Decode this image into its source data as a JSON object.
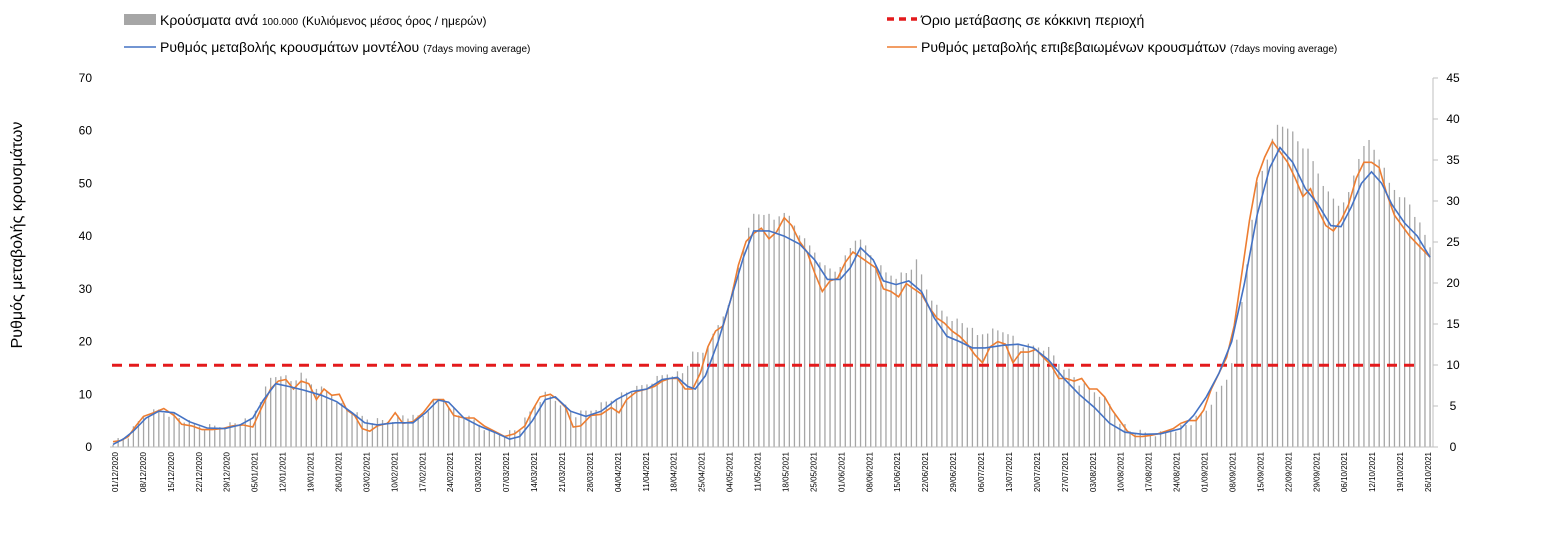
{
  "chart_data": {
    "type": "bar+line",
    "title": "",
    "ylabel": "Ρυθμός μεταβολής κρουσμάτων",
    "ylim_left": [
      0,
      70
    ],
    "ylim_right": [
      0,
      45
    ],
    "yticks_left": [
      "0",
      "10",
      "20",
      "30",
      "40",
      "50",
      "60",
      "70"
    ],
    "yticks_right": [
      "0",
      "5",
      "10",
      "15",
      "20",
      "25",
      "30",
      "35",
      "40",
      "45"
    ],
    "legend": {
      "bars_main": "Κρούσματα ανά",
      "bars_small": "100.000",
      "bars_main2": "(Κυλιόμενος μέσος όρος / ημερών)",
      "threshold": "Όριο μετάβασης σε κόκκινη περιοχή",
      "model_main": "Ρυθμός μεταβολής κρουσμάτων μοντέλου",
      "model_small": "(7days moving average)",
      "confirmed_main": "Ρυθμός μεταβολής επιβεβαιωμένων κρουσμάτων",
      "confirmed_small": "(7days moving average)"
    },
    "x_tick_labels": [
      "01/12/2020",
      "08/12/2020",
      "15/12/2020",
      "22/12/2020",
      "29/12/2020",
      "05/01/2021",
      "12/01/2021",
      "19/01/2021",
      "26/01/2021",
      "03/02/2021",
      "10/02/2021",
      "17/02/2021",
      "24/02/2021",
      "03/03/2021",
      "07/03/2021",
      "14/03/2021",
      "21/03/2021",
      "28/03/2021",
      "04/04/2021",
      "11/04/2021",
      "18/04/2021",
      "25/04/2021",
      "04/05/2021",
      "11/05/2021",
      "18/05/2021",
      "25/05/2021",
      "01/06/2021",
      "08/06/2021",
      "15/06/2021",
      "22/06/2021",
      "29/06/2021",
      "06/07/2021",
      "13/07/2021",
      "20/07/2021",
      "27/07/2021",
      "03/08/2021",
      "10/08/2021",
      "17/08/2021",
      "24/08/2021",
      "01/09/2021",
      "08/09/2021",
      "15/09/2021",
      "22/09/2021",
      "29/09/2021",
      "06/10/2021",
      "12/10/2021",
      "19/10/2021",
      "26/10/2021"
    ],
    "threshold_value": 15.5,
    "colors": {
      "bars": "#a6a6a6",
      "model": "#4472c4",
      "confirmed": "#ed7d31",
      "threshold": "#e31a1c"
    },
    "model_points": [
      [
        0,
        0.5
      ],
      [
        4,
        1.5
      ],
      [
        8,
        3
      ],
      [
        13,
        5.5
      ],
      [
        18,
        6.8
      ],
      [
        24,
        6.5
      ],
      [
        30,
        4.8
      ],
      [
        37,
        3.6
      ],
      [
        44,
        3.5
      ],
      [
        50,
        4.2
      ],
      [
        55,
        5.5
      ],
      [
        59,
        8.8
      ],
      [
        64,
        12
      ],
      [
        69,
        11.5
      ],
      [
        75,
        10.8
      ],
      [
        82,
        9.8
      ],
      [
        88,
        8.6
      ],
      [
        94,
        6.5
      ],
      [
        99,
        4.6
      ],
      [
        104,
        4.2
      ],
      [
        111,
        4.6
      ],
      [
        118,
        4.6
      ],
      [
        123,
        6.5
      ],
      [
        128,
        8.9
      ],
      [
        132,
        8.5
      ],
      [
        138,
        5.5
      ],
      [
        144,
        4.0
      ],
      [
        150,
        2.8
      ],
      [
        156,
        1.5
      ],
      [
        160,
        2
      ],
      [
        165,
        5
      ],
      [
        170,
        9
      ],
      [
        174,
        9.5
      ],
      [
        180,
        6.8
      ],
      [
        186,
        5.8
      ],
      [
        192,
        6.8
      ],
      [
        198,
        9
      ],
      [
        204,
        10.5
      ],
      [
        210,
        11
      ],
      [
        216,
        12.8
      ],
      [
        222,
        13.2
      ],
      [
        226,
        11.5
      ],
      [
        229,
        11
      ],
      [
        233,
        13.5
      ],
      [
        238,
        20
      ],
      [
        243,
        28
      ],
      [
        248,
        36
      ],
      [
        252,
        41
      ],
      [
        258,
        41
      ],
      [
        264,
        40
      ],
      [
        270,
        38.5
      ],
      [
        276,
        35.5
      ],
      [
        281,
        31.8
      ],
      [
        286,
        31.8
      ],
      [
        290,
        34
      ],
      [
        294,
        37.8
      ],
      [
        299,
        35.5
      ],
      [
        303,
        31.5
      ],
      [
        308,
        30.8
      ],
      [
        313,
        31.5
      ],
      [
        318,
        29.5
      ],
      [
        323,
        24.5
      ],
      [
        328,
        21
      ],
      [
        333,
        20
      ],
      [
        338,
        18.8
      ],
      [
        343,
        18.8
      ],
      [
        350,
        19.3
      ],
      [
        356,
        19.5
      ],
      [
        362,
        18.8
      ],
      [
        368,
        16.5
      ],
      [
        374,
        13
      ],
      [
        380,
        10
      ],
      [
        386,
        7.5
      ],
      [
        392,
        4.5
      ],
      [
        398,
        2.8
      ],
      [
        405,
        2.4
      ],
      [
        412,
        2.5
      ],
      [
        420,
        3.5
      ],
      [
        425,
        6
      ],
      [
        430,
        9.5
      ],
      [
        435,
        14
      ],
      [
        440,
        20
      ],
      [
        445,
        31
      ],
      [
        450,
        44
      ],
      [
        455,
        53
      ],
      [
        459,
        56.8
      ],
      [
        464,
        54
      ],
      [
        469,
        49
      ],
      [
        474,
        46
      ],
      [
        479,
        42
      ],
      [
        483,
        41.8
      ],
      [
        487,
        45.5
      ],
      [
        491,
        50
      ],
      [
        495,
        52.2
      ],
      [
        499,
        50
      ],
      [
        503,
        46
      ],
      [
        508,
        42.5
      ],
      [
        513,
        40
      ],
      [
        518,
        36
      ]
    ],
    "confirmed_points": [
      [
        0,
        1
      ],
      [
        3,
        1.2
      ],
      [
        6,
        2
      ],
      [
        9,
        4
      ],
      [
        12,
        5.8
      ],
      [
        16,
        6.5
      ],
      [
        20,
        7.3
      ],
      [
        24,
        6
      ],
      [
        27,
        4.3
      ],
      [
        31,
        4
      ],
      [
        35,
        3.3
      ],
      [
        39,
        3.3
      ],
      [
        43,
        3.5
      ],
      [
        47,
        4
      ],
      [
        51,
        4.2
      ],
      [
        55,
        3.8
      ],
      [
        58,
        7
      ],
      [
        62,
        11
      ],
      [
        65,
        12.5
      ],
      [
        68,
        12.8
      ],
      [
        71,
        11
      ],
      [
        74,
        12.5
      ],
      [
        77,
        12
      ],
      [
        80,
        9
      ],
      [
        83,
        11
      ],
      [
        86,
        9.8
      ],
      [
        89,
        10
      ],
      [
        92,
        7
      ],
      [
        95,
        6
      ],
      [
        98,
        3.5
      ],
      [
        101,
        3
      ],
      [
        104,
        4
      ],
      [
        108,
        4.5
      ],
      [
        111,
        6.5
      ],
      [
        114,
        4.5
      ],
      [
        118,
        4.8
      ],
      [
        122,
        6.5
      ],
      [
        126,
        9
      ],
      [
        130,
        9
      ],
      [
        134,
        6
      ],
      [
        138,
        5.5
      ],
      [
        142,
        5.5
      ],
      [
        146,
        4
      ],
      [
        150,
        3
      ],
      [
        154,
        2
      ],
      [
        158,
        2.5
      ],
      [
        162,
        4
      ],
      [
        165,
        7
      ],
      [
        168,
        9.5
      ],
      [
        172,
        10
      ],
      [
        175,
        9
      ],
      [
        178,
        7.5
      ],
      [
        181,
        3.8
      ],
      [
        184,
        4
      ],
      [
        188,
        6
      ],
      [
        192,
        6.2
      ],
      [
        196,
        7.5
      ],
      [
        199,
        6.5
      ],
      [
        202,
        9
      ],
      [
        206,
        10.5
      ],
      [
        210,
        11
      ],
      [
        213,
        11.5
      ],
      [
        216,
        12.5
      ],
      [
        219,
        13
      ],
      [
        222,
        13
      ],
      [
        225,
        11
      ],
      [
        228,
        11
      ],
      [
        231,
        14
      ],
      [
        234,
        19
      ],
      [
        237,
        22
      ],
      [
        240,
        23
      ],
      [
        243,
        28
      ],
      [
        246,
        34.5
      ],
      [
        249,
        39
      ],
      [
        252,
        40.5
      ],
      [
        255,
        41.5
      ],
      [
        258,
        39.5
      ],
      [
        261,
        40.8
      ],
      [
        264,
        43.5
      ],
      [
        267,
        42
      ],
      [
        270,
        39
      ],
      [
        273,
        37
      ],
      [
        276,
        33
      ],
      [
        279,
        29.5
      ],
      [
        282,
        31.5
      ],
      [
        285,
        32
      ],
      [
        288,
        35
      ],
      [
        291,
        37
      ],
      [
        294,
        36
      ],
      [
        297,
        35
      ],
      [
        300,
        34
      ],
      [
        303,
        30
      ],
      [
        306,
        29.5
      ],
      [
        309,
        28.5
      ],
      [
        312,
        31
      ],
      [
        315,
        30
      ],
      [
        318,
        29
      ],
      [
        321,
        26.5
      ],
      [
        324,
        24.5
      ],
      [
        327,
        23.5
      ],
      [
        330,
        22
      ],
      [
        333,
        21
      ],
      [
        336,
        19.5
      ],
      [
        339,
        17.5
      ],
      [
        342,
        16
      ],
      [
        345,
        19
      ],
      [
        348,
        20
      ],
      [
        351,
        19.5
      ],
      [
        354,
        16
      ],
      [
        357,
        18
      ],
      [
        360,
        18
      ],
      [
        363,
        18.5
      ],
      [
        366,
        17
      ],
      [
        369,
        15.5
      ],
      [
        372,
        13
      ],
      [
        375,
        13
      ],
      [
        378,
        12.5
      ],
      [
        381,
        13
      ],
      [
        384,
        11
      ],
      [
        387,
        11
      ],
      [
        390,
        9.5
      ],
      [
        393,
        7
      ],
      [
        396,
        5
      ],
      [
        399,
        3
      ],
      [
        402,
        2
      ],
      [
        405,
        2
      ],
      [
        408,
        2.2
      ],
      [
        411,
        2.5
      ],
      [
        414,
        3
      ],
      [
        417,
        3.5
      ],
      [
        420,
        4.5
      ],
      [
        423,
        5
      ],
      [
        426,
        5
      ],
      [
        429,
        7
      ],
      [
        432,
        11
      ],
      [
        435,
        14
      ],
      [
        438,
        17
      ],
      [
        441,
        23
      ],
      [
        444,
        33
      ],
      [
        447,
        43
      ],
      [
        450,
        51
      ],
      [
        453,
        55
      ],
      [
        456,
        58
      ],
      [
        459,
        56
      ],
      [
        462,
        54
      ],
      [
        465,
        51
      ],
      [
        468,
        47.5
      ],
      [
        471,
        49
      ],
      [
        474,
        45
      ],
      [
        477,
        42
      ],
      [
        480,
        41
      ],
      [
        483,
        43
      ],
      [
        486,
        46
      ],
      [
        489,
        51
      ],
      [
        492,
        54
      ],
      [
        495,
        54
      ],
      [
        498,
        53
      ],
      [
        501,
        48
      ],
      [
        504,
        44
      ],
      [
        507,
        42
      ],
      [
        510,
        40
      ],
      [
        514,
        38
      ],
      [
        518,
        36
      ]
    ],
    "bar_points": [
      [
        0,
        1
      ],
      [
        6,
        2
      ],
      [
        12,
        6
      ],
      [
        18,
        7
      ],
      [
        24,
        6
      ],
      [
        30,
        4.5
      ],
      [
        36,
        3.8
      ],
      [
        42,
        4
      ],
      [
        48,
        4.5
      ],
      [
        54,
        5
      ],
      [
        58,
        9
      ],
      [
        62,
        13
      ],
      [
        66,
        14
      ],
      [
        70,
        12.5
      ],
      [
        74,
        13.5
      ],
      [
        78,
        12
      ],
      [
        82,
        11
      ],
      [
        86,
        10
      ],
      [
        90,
        8
      ],
      [
        96,
        6
      ],
      [
        102,
        5
      ],
      [
        108,
        5
      ],
      [
        114,
        6
      ],
      [
        118,
        5.5
      ],
      [
        122,
        6
      ],
      [
        126,
        8.5
      ],
      [
        130,
        9
      ],
      [
        136,
        6
      ],
      [
        142,
        5
      ],
      [
        148,
        3
      ],
      [
        154,
        2.5
      ],
      [
        160,
        3.5
      ],
      [
        166,
        8
      ],
      [
        170,
        10
      ],
      [
        176,
        8.5
      ],
      [
        182,
        6
      ],
      [
        188,
        7
      ],
      [
        194,
        8.5
      ],
      [
        200,
        10
      ],
      [
        206,
        11
      ],
      [
        212,
        12.5
      ],
      [
        218,
        14
      ],
      [
        224,
        14
      ],
      [
        228,
        17.5
      ],
      [
        232,
        18
      ],
      [
        236,
        21
      ],
      [
        240,
        25
      ],
      [
        244,
        30
      ],
      [
        248,
        38
      ],
      [
        252,
        44
      ],
      [
        256,
        44.5
      ],
      [
        260,
        43
      ],
      [
        264,
        45
      ],
      [
        268,
        42
      ],
      [
        272,
        39
      ],
      [
        276,
        37
      ],
      [
        280,
        34
      ],
      [
        284,
        33.5
      ],
      [
        288,
        36
      ],
      [
        292,
        39.5
      ],
      [
        296,
        38
      ],
      [
        300,
        35
      ],
      [
        304,
        33
      ],
      [
        308,
        32.5
      ],
      [
        312,
        33
      ],
      [
        316,
        35
      ],
      [
        320,
        30
      ],
      [
        324,
        26.5
      ],
      [
        328,
        25
      ],
      [
        332,
        24
      ],
      [
        336,
        23
      ],
      [
        340,
        21
      ],
      [
        344,
        22
      ],
      [
        348,
        22
      ],
      [
        352,
        22
      ],
      [
        356,
        19.5
      ],
      [
        360,
        19
      ],
      [
        364,
        19
      ],
      [
        368,
        18.5
      ],
      [
        372,
        16
      ],
      [
        376,
        14.5
      ],
      [
        380,
        12
      ],
      [
        384,
        11
      ],
      [
        388,
        10
      ],
      [
        392,
        8
      ],
      [
        396,
        5
      ],
      [
        400,
        3
      ],
      [
        406,
        2.5
      ],
      [
        412,
        2.5
      ],
      [
        418,
        3.5
      ],
      [
        424,
        4.5
      ],
      [
        430,
        7
      ],
      [
        434,
        10
      ],
      [
        438,
        13
      ],
      [
        442,
        20
      ],
      [
        446,
        35
      ],
      [
        450,
        50
      ],
      [
        454,
        55
      ],
      [
        458,
        61
      ],
      [
        462,
        61
      ],
      [
        466,
        58
      ],
      [
        470,
        56
      ],
      [
        474,
        52
      ],
      [
        478,
        48
      ],
      [
        482,
        46
      ],
      [
        486,
        48
      ],
      [
        490,
        55
      ],
      [
        494,
        58
      ],
      [
        498,
        55
      ],
      [
        502,
        50
      ],
      [
        506,
        48
      ],
      [
        510,
        46
      ],
      [
        514,
        42
      ],
      [
        518,
        38
      ]
    ]
  }
}
